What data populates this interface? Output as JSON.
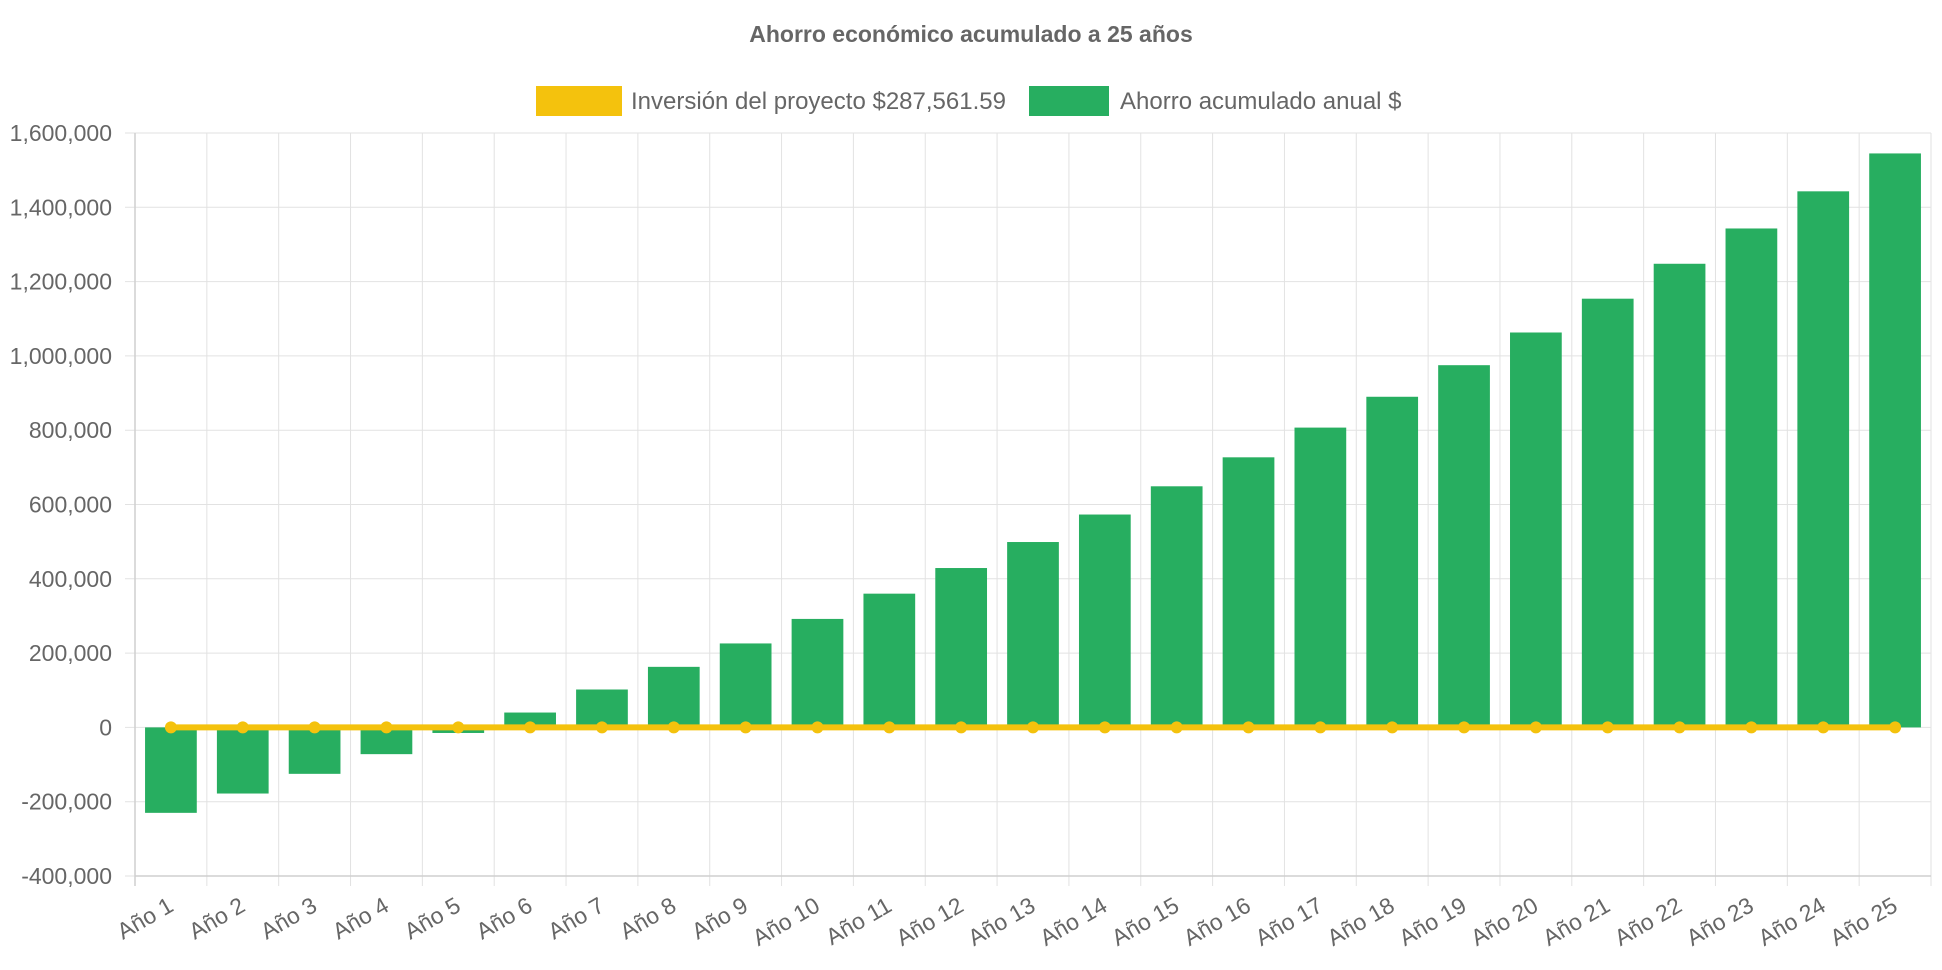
{
  "chart_data": {
    "type": "bar",
    "title": "Ahorro económico acumulado a 25 años",
    "xlabel": "",
    "ylabel": "",
    "ylim": [
      -400000,
      1600000
    ],
    "ytick_step": 200000,
    "grid": true,
    "legend_position": "top",
    "categories": [
      "Año 1",
      "Año 2",
      "Año 3",
      "Año 4",
      "Año 5",
      "Año 6",
      "Año 7",
      "Año 8",
      "Año 9",
      "Año 10",
      "Año 11",
      "Año 12",
      "Año 13",
      "Año 14",
      "Año 15",
      "Año 16",
      "Año 17",
      "Año 18",
      "Año 19",
      "Año 20",
      "Año 21",
      "Año 22",
      "Año 23",
      "Año 24",
      "Año 25"
    ],
    "series": [
      {
        "name": "Inversión del proyecto $287,561.59",
        "type": "line",
        "color": "#f4c20d",
        "values": [
          0,
          0,
          0,
          0,
          0,
          0,
          0,
          0,
          0,
          0,
          0,
          0,
          0,
          0,
          0,
          0,
          0,
          0,
          0,
          0,
          0,
          0,
          0,
          0,
          0
        ]
      },
      {
        "name": "Ahorro acumulado anual $",
        "type": "bar",
        "color": "#27ae60",
        "values": [
          -230000,
          -178000,
          -125000,
          -72000,
          -15000,
          40000,
          102000,
          163000,
          226000,
          292000,
          360000,
          429000,
          499000,
          573000,
          649000,
          727000,
          807000,
          890000,
          975000,
          1063000,
          1154000,
          1248000,
          1343000,
          1443000,
          1545000
        ]
      }
    ]
  }
}
